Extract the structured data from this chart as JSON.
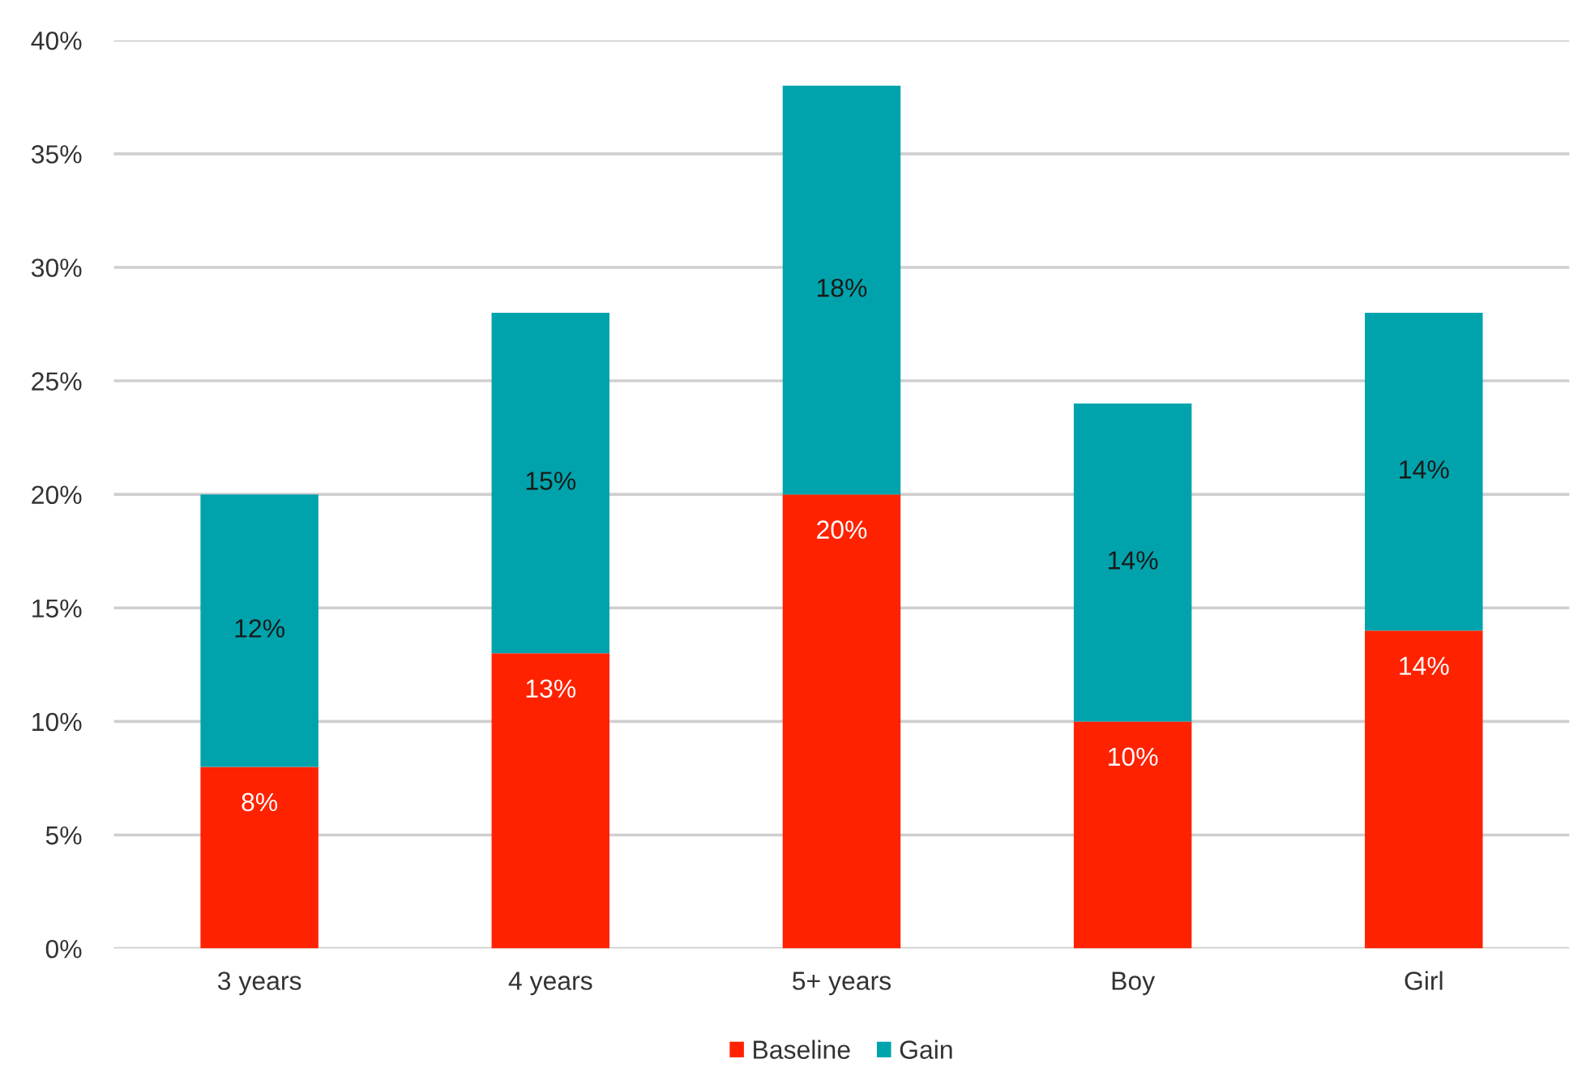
{
  "chart_data": {
    "type": "bar",
    "stacked": true,
    "categories": [
      "3 years",
      "4 years",
      "5+ years",
      "Boy",
      "Girl"
    ],
    "series": [
      {
        "name": "Baseline",
        "color": "#ff2200",
        "values": [
          8,
          13,
          20,
          10,
          14
        ],
        "value_labels": [
          "8%",
          "13%",
          "20%",
          "10%",
          "14%"
        ]
      },
      {
        "name": "Gain",
        "color": "#00a3ac",
        "values": [
          12,
          15,
          18,
          14,
          14
        ],
        "value_labels": [
          "12%",
          "15%",
          "18%",
          "14%",
          "14%"
        ]
      }
    ],
    "ylim": [
      0,
      40
    ],
    "yticks": [
      {
        "value": 0,
        "label": "0%"
      },
      {
        "value": 5,
        "label": "5%"
      },
      {
        "value": 10,
        "label": "10%"
      },
      {
        "value": 15,
        "label": "15%"
      },
      {
        "value": 20,
        "label": "20%"
      },
      {
        "value": 25,
        "label": "25%"
      },
      {
        "value": 30,
        "label": "30%"
      },
      {
        "value": 35,
        "label": "35%"
      },
      {
        "value": 40,
        "label": "40%"
      }
    ],
    "grid": "y",
    "legend": "bottom"
  }
}
